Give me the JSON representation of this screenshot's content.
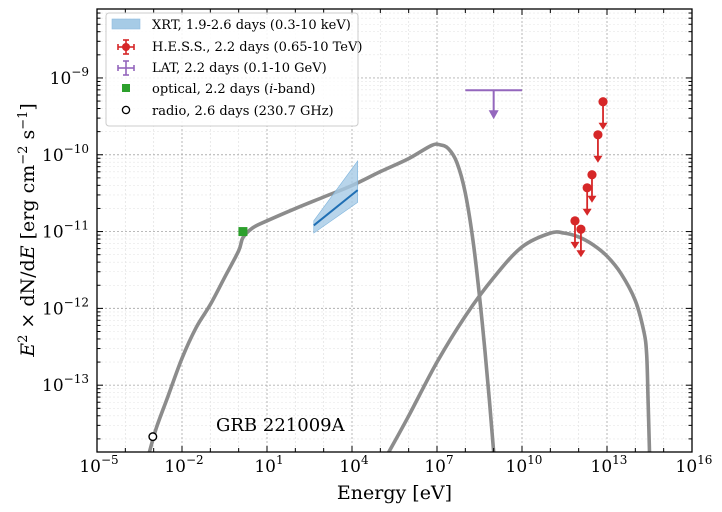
{
  "chart_data": {
    "type": "scatter",
    "title": "",
    "annotation": "GRB 221009A",
    "xlabel": "Energy [eV]",
    "ylabel": "E^2 × dN/dE [erg cm^-2 s^-1]",
    "xscale": "log",
    "yscale": "log",
    "xlim": [
      1e-05,
      1e+16
    ],
    "ylim": [
      1.35e-14,
      7.9e-09
    ],
    "grid": true,
    "legend_position": "top-left",
    "x_ticks": [
      {
        "exp": "-5",
        "value": 1e-05
      },
      {
        "exp": "-2",
        "value": 0.01
      },
      {
        "exp": "1",
        "value": 10.0
      },
      {
        "exp": "4",
        "value": 10000.0
      },
      {
        "exp": "7",
        "value": 10000000.0
      },
      {
        "exp": "10",
        "value": 10000000000.0
      },
      {
        "exp": "13",
        "value": 10000000000000.0
      },
      {
        "exp": "16",
        "value": 1e+16
      }
    ],
    "y_ticks": [
      {
        "exp": "−9",
        "value": 1e-09
      },
      {
        "exp": "−10",
        "value": 1e-10
      },
      {
        "exp": "−11",
        "value": 1e-11
      },
      {
        "exp": "−12",
        "value": 1e-12
      },
      {
        "exp": "−13",
        "value": 1e-13
      }
    ],
    "tick_base": "10",
    "colors": {
      "model": "#8c8c8c",
      "xrt_band": "#a6cbe6",
      "xrt_line": "#1f6fb4",
      "hess": "#d62728",
      "lat": "#9467bd",
      "optical": "#2ca02c",
      "radio": "#000000"
    },
    "legend": [
      {
        "key": "xrt",
        "label": "XRT, 1.9-2.6 days (0.3-10 keV)"
      },
      {
        "key": "hess",
        "label": "H.E.S.S., 2.2 days (0.65-10 TeV)"
      },
      {
        "key": "lat",
        "label": "LAT, 2.2 days (0.1-10 GeV)"
      },
      {
        "key": "optical",
        "label_pre": "optical, 2.2 days (",
        "label_italic": "i",
        "label_post": "-band)"
      },
      {
        "key": "radio",
        "label": "radio, 2.6 days (230.7 GHz)"
      }
    ],
    "series": [
      {
        "name": "synchrotron model",
        "kind": "line",
        "points": [
          [
            -3.15,
            -13.87
          ],
          [
            -2.9,
            -13.55
          ],
          [
            -2.5,
            -13.15
          ],
          [
            -2.0,
            -12.65
          ],
          [
            -1.5,
            -12.25
          ],
          [
            -1.0,
            -11.95
          ],
          [
            -0.5,
            -11.6
          ],
          [
            0.0,
            -11.25
          ],
          [
            0.15,
            -11.08
          ],
          [
            0.5,
            -10.95
          ],
          [
            1.0,
            -10.86
          ],
          [
            2.0,
            -10.7
          ],
          [
            3.0,
            -10.55
          ],
          [
            4.0,
            -10.4
          ],
          [
            5.0,
            -10.22
          ],
          [
            6.0,
            -10.05
          ],
          [
            6.8,
            -9.88
          ],
          [
            7.1,
            -9.87
          ],
          [
            7.4,
            -9.92
          ],
          [
            7.7,
            -10.1
          ],
          [
            8.0,
            -10.5
          ],
          [
            8.3,
            -11.2
          ],
          [
            8.6,
            -12.2
          ],
          [
            8.85,
            -13.2
          ],
          [
            9.0,
            -13.87
          ]
        ]
      },
      {
        "name": "SSC model",
        "kind": "line",
        "points": [
          [
            5.3,
            -13.87
          ],
          [
            6.0,
            -13.4
          ],
          [
            7.0,
            -12.7
          ],
          [
            8.0,
            -12.1
          ],
          [
            9.0,
            -11.6
          ],
          [
            10.0,
            -11.2
          ],
          [
            11.0,
            -11.02
          ],
          [
            11.5,
            -11.02
          ],
          [
            12.0,
            -11.07
          ],
          [
            12.5,
            -11.17
          ],
          [
            13.0,
            -11.32
          ],
          [
            13.5,
            -11.55
          ],
          [
            14.0,
            -11.9
          ],
          [
            14.3,
            -12.3
          ],
          [
            14.4,
            -12.6
          ],
          [
            14.45,
            -13.2
          ],
          [
            14.5,
            -13.87
          ]
        ]
      },
      {
        "name": "XRT, 1.9-2.6 days (0.3-10 keV)",
        "kind": "band",
        "x": [
          2.65,
          4.2
        ],
        "line": [
          -10.92,
          -10.46
        ],
        "upper": [
          -10.86,
          -10.08
        ],
        "lower": [
          -11.02,
          -10.62
        ]
      },
      {
        "name": "H.E.S.S., 2.2 days (0.65-10 TeV)",
        "kind": "upper_limits",
        "points": [
          [
            11.87,
            -10.86
          ],
          [
            12.08,
            -10.97
          ],
          [
            12.3,
            -10.43
          ],
          [
            12.47,
            -10.26
          ],
          [
            12.68,
            -9.74
          ],
          [
            12.86,
            -9.31
          ]
        ]
      },
      {
        "name": "LAT, 2.2 days (0.1-10 GeV)",
        "kind": "upper_limit_bar",
        "x_range": [
          8.0,
          10.0
        ],
        "x_center": 9.0,
        "y": -9.16
      },
      {
        "name": "optical, 2.2 days (i-band)",
        "kind": "point",
        "points": [
          [
            0.15,
            -11.0
          ]
        ]
      },
      {
        "name": "radio, 2.6 days (230.7 GHz)",
        "kind": "point",
        "points": [
          [
            -3.03,
            -13.67
          ]
        ]
      }
    ]
  }
}
